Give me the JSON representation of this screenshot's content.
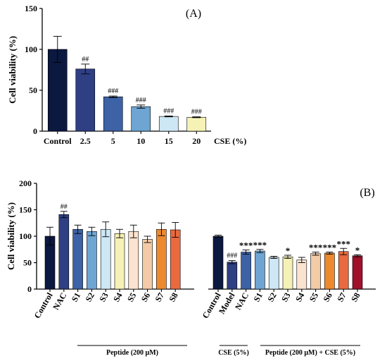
{
  "chart_data": [
    {
      "type": "bar",
      "panel_label": "(A)",
      "ylabel": "Cell viability (%)",
      "xlabel": "CSE (%)",
      "ylim": [
        0,
        150
      ],
      "yticks": [
        0,
        50,
        100,
        150
      ],
      "categories": [
        "Control",
        "2.5",
        "5",
        "10",
        "15",
        "20"
      ],
      "values": [
        100,
        76,
        42,
        30,
        18,
        17
      ],
      "errors": [
        16,
        6,
        1,
        2,
        0.5,
        0.5
      ],
      "annotations": [
        "",
        "##",
        "###",
        "###",
        "###",
        "###"
      ],
      "colors": [
        "#0b1840",
        "#2f3f84",
        "#3d62a6",
        "#6ea5d2",
        "#cde7f5",
        "#f6f1b5"
      ]
    },
    {
      "type": "bar",
      "panel_label": "(B)",
      "ylabel": "Cell viability (%)",
      "ylim": [
        0,
        200
      ],
      "yticks": [
        0,
        50,
        100,
        150,
        200
      ],
      "groups": [
        {
          "categories": [
            "Control",
            "NAC",
            "S1",
            "S2",
            "S3",
            "S4",
            "S5",
            "S6",
            "S7",
            "S8"
          ],
          "values": [
            100,
            141,
            113,
            109,
            113,
            105,
            109,
            94,
            113,
            112
          ],
          "errors": [
            17,
            6,
            8,
            8,
            14,
            8,
            12,
            6,
            12,
            14
          ],
          "annotations": [
            "",
            "##",
            "",
            "",
            "",
            "",
            "",
            "",
            "",
            ""
          ],
          "colors": [
            "#0b1840",
            "#2f3f84",
            "#3d62a6",
            "#6ea5d2",
            "#cde7f5",
            "#f6f1b5",
            "#fbe3cf",
            "#f3cba7",
            "#ee8a2e",
            "#ea6a3f"
          ]
        },
        {
          "categories": [
            "Control",
            "Model",
            "NAC",
            "S1",
            "S2",
            "S3",
            "S4",
            "S5",
            "S6",
            "S7",
            "S8"
          ],
          "values": [
            100,
            51,
            70,
            72,
            60,
            61,
            55,
            67,
            68,
            71,
            63
          ],
          "errors": [
            2,
            3,
            4,
            3,
            2,
            3,
            5,
            3,
            2,
            6,
            2
          ],
          "annotations": [
            "",
            "###",
            "***",
            "***",
            "",
            "*",
            "",
            "***",
            "***",
            "***",
            "*"
          ],
          "colors": [
            "#0b1840",
            "#2f3f84",
            "#3d62a6",
            "#6ea5d2",
            "#cde7f5",
            "#f6f1b5",
            "#fbe3cf",
            "#f3cba7",
            "#ee8a2e",
            "#ea6a3f",
            "#a0102a"
          ]
        }
      ],
      "group_labels": [
        "Peptide (200 μM)",
        "CSE (5%)",
        "Peptide (200 μM) + CSE (5%)"
      ]
    }
  ]
}
